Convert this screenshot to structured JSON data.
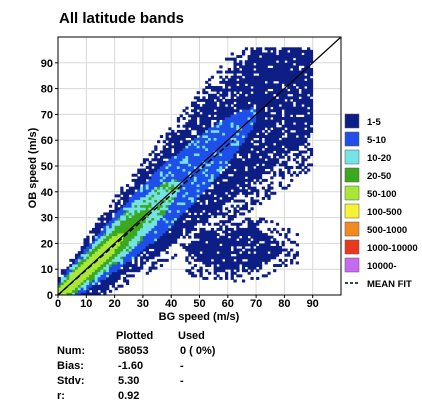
{
  "chart_data": {
    "type": "heatmap",
    "title": "All latitude bands",
    "xlabel": "BG speed (m/s)",
    "ylabel": "OB speed (m/s)",
    "xlim": [
      0,
      100
    ],
    "ylim": [
      0,
      100
    ],
    "xticks": [
      "0",
      "10",
      "20",
      "30",
      "40",
      "50",
      "60",
      "70",
      "80",
      "90"
    ],
    "yticks": [
      "0",
      "10",
      "20",
      "30",
      "40",
      "50",
      "60",
      "70",
      "80",
      "90"
    ],
    "grid": true,
    "reference_line": "y = x",
    "mean_fit": {
      "slope": 0.97,
      "intercept": 0.0,
      "x_range": [
        0,
        62
      ]
    },
    "legend_placement": "right",
    "legend": [
      {
        "label": "1-5",
        "color": "#0d1e85"
      },
      {
        "label": "5-10",
        "color": "#1f4fe8"
      },
      {
        "label": "10-20",
        "color": "#74e3e8"
      },
      {
        "label": "20-50",
        "color": "#3ca81e"
      },
      {
        "label": "50-100",
        "color": "#a9e63a"
      },
      {
        "label": "100-500",
        "color": "#f7f238"
      },
      {
        "label": "500-1000",
        "color": "#f28a22"
      },
      {
        "label": "1000-10000",
        "color": "#e8391e"
      },
      {
        "label": "10000-",
        "color": "#c86af0"
      },
      {
        "label": "MEAN FIT",
        "style": "dashed"
      }
    ],
    "stats": {
      "headers": [
        "Plotted",
        "Used"
      ],
      "rows": [
        {
          "label": "Num:",
          "plotted": "58053",
          "used": "0 ( 0%)"
        },
        {
          "label": "Bias:",
          "plotted": "-1.60",
          "used": "-"
        },
        {
          "label": "Stdv:",
          "plotted": "5.30",
          "used": "-"
        },
        {
          "label": "r:",
          "plotted": "0.92",
          "used": ""
        }
      ]
    }
  }
}
